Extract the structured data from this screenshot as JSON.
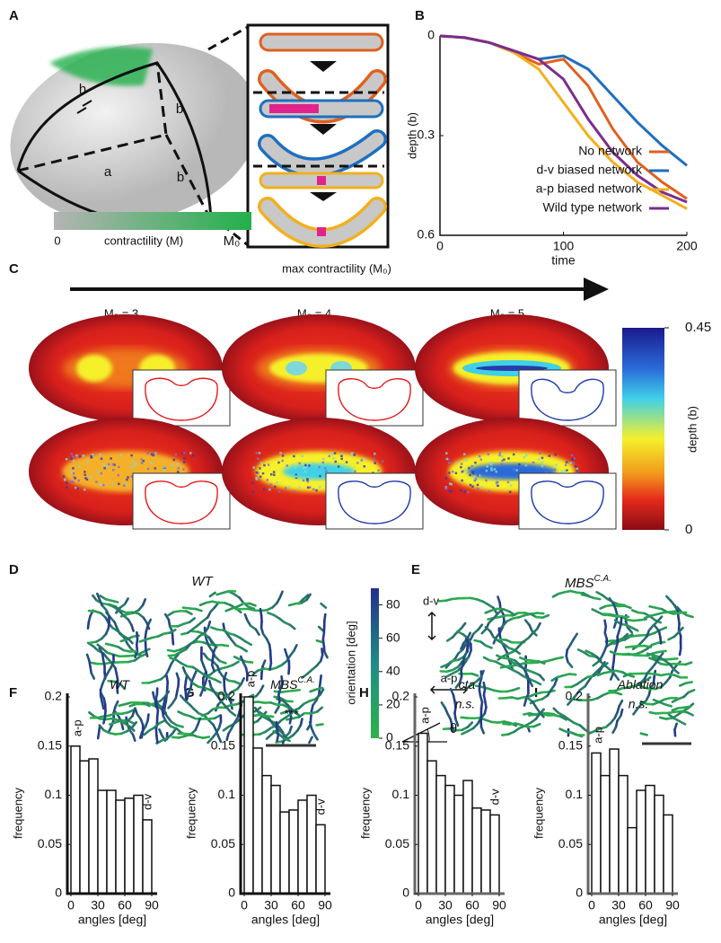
{
  "figure": {
    "panel_labels": [
      "A",
      "B",
      "C",
      "D",
      "E",
      "F",
      "G",
      "H",
      "I"
    ],
    "panel_a": {
      "dims": [
        "h",
        "a",
        "b",
        "b"
      ],
      "colorbar_min": "0",
      "colorbar_label": "contractility (M)",
      "colorbar_max": "M₀"
    },
    "panel_c": {
      "arrow_label": "max contractility (M₀)",
      "columns": [
        "M₀ = 3",
        "M₀ = 4",
        "M₀ = 5"
      ],
      "colorbar": {
        "label": "depth (b)",
        "lim": [
          0,
          0.45
        ],
        "ticks": [
          0,
          0.45
        ]
      }
    },
    "panel_d": {
      "title": "WT",
      "colorbar": {
        "label": "orientation [deg]",
        "lim": [
          0,
          90
        ],
        "ticks": [
          0,
          20,
          40,
          60,
          80
        ]
      }
    },
    "panel_e": {
      "title": "MBS",
      "title_sup": "C.A.",
      "ap": "a-p",
      "dv": "d-v",
      "theta": "θ"
    }
  },
  "chart_data": [
    {
      "type": "line",
      "xlabel": "time",
      "ylabel": "depth (b)",
      "x": [
        0,
        20,
        40,
        60,
        80,
        100,
        120,
        140,
        160,
        180,
        200
      ],
      "xlim": [
        0,
        200
      ],
      "xticks": [
        0,
        100,
        200
      ],
      "ylim": [
        0,
        0.6
      ],
      "yticks": [
        0,
        0.3,
        0.6
      ],
      "y_reversed": true,
      "legend": "lower right",
      "series": [
        {
          "name": "No network",
          "color": "#e0601f",
          "values": [
            0,
            0.005,
            0.02,
            0.05,
            0.085,
            0.07,
            0.15,
            0.28,
            0.38,
            0.44,
            0.49
          ]
        },
        {
          "name": "d-v biased network",
          "color": "#1f6fbf",
          "values": [
            0,
            0.005,
            0.02,
            0.045,
            0.07,
            0.06,
            0.1,
            0.18,
            0.26,
            0.33,
            0.39
          ]
        },
        {
          "name": "a-p biased network",
          "color": "#f2b01e",
          "values": [
            0,
            0.005,
            0.02,
            0.05,
            0.1,
            0.2,
            0.3,
            0.38,
            0.44,
            0.48,
            0.52
          ]
        },
        {
          "name": "Wild type network",
          "color": "#7b2d8e",
          "values": [
            0,
            0.005,
            0.02,
            0.045,
            0.07,
            0.13,
            0.25,
            0.35,
            0.42,
            0.47,
            0.5
          ]
        }
      ]
    },
    {
      "type": "histogram",
      "title": "WT",
      "start_label": "a-p",
      "end_label": "d-v",
      "xlabel": "angles [deg]",
      "ylabel": "frequency",
      "bins": [
        0,
        10,
        20,
        30,
        40,
        50,
        60,
        70,
        80,
        90
      ],
      "values": [
        0.15,
        0.135,
        0.137,
        0.105,
        0.105,
        0.095,
        0.097,
        0.1,
        0.075
      ],
      "xlim": [
        -4,
        96
      ],
      "xticks": [
        0,
        30,
        60,
        90
      ],
      "ylim": [
        0,
        0.2
      ],
      "yticks": [
        0,
        0.05,
        0.1,
        0.15,
        0.2
      ],
      "color": "#ffffff"
    },
    {
      "type": "histogram",
      "title": "MBS",
      "title_sup": "C.A.",
      "note": "***",
      "start_label": "a-p",
      "end_label": "d-v",
      "xlabel": "angles [deg]",
      "ylabel": "frequency",
      "bins": [
        0,
        10,
        20,
        30,
        40,
        50,
        60,
        70,
        80,
        90
      ],
      "values": [
        0.2,
        0.148,
        0.12,
        0.11,
        0.083,
        0.085,
        0.095,
        0.1,
        0.07
      ],
      "xlim": [
        -4,
        96
      ],
      "xticks": [
        0,
        30,
        60,
        90
      ],
      "ylim": [
        0,
        0.2
      ],
      "yticks": [
        0,
        0.05,
        0.1,
        0.15,
        0.2
      ],
      "color": "#ffffff"
    },
    {
      "type": "histogram",
      "title": "cta",
      "note": "n.s.",
      "start_label": "a-p",
      "end_label": "d-v",
      "xlabel": "angles [deg]",
      "ylabel": "frequency",
      "bins": [
        0,
        10,
        20,
        30,
        40,
        50,
        60,
        70,
        80,
        90
      ],
      "values": [
        0.163,
        0.135,
        0.12,
        0.11,
        0.1,
        0.115,
        0.087,
        0.085,
        0.08
      ],
      "xlim": [
        -4,
        96
      ],
      "xticks": [
        0,
        30,
        60,
        90
      ],
      "ylim": [
        0,
        0.2
      ],
      "yticks": [
        0,
        0.05,
        0.1,
        0.15,
        0.2
      ],
      "color": "#ffffff"
    },
    {
      "type": "histogram",
      "title": "Ablation",
      "note": "n.s.",
      "start_label": "a-p",
      "xlabel": "angles [deg]",
      "ylabel": "frequency",
      "bins": [
        0,
        10,
        20,
        30,
        40,
        50,
        60,
        70,
        80,
        90
      ],
      "values": [
        0.143,
        0.12,
        0.147,
        0.12,
        0.067,
        0.105,
        0.11,
        0.1,
        0.08
      ],
      "xlim": [
        -4,
        96
      ],
      "xticks": [
        0,
        30,
        60,
        90
      ],
      "ylim": [
        0,
        0.2
      ],
      "yticks": [
        0,
        0.05,
        0.1,
        0.15,
        0.2
      ],
      "color": "#ffffff"
    }
  ]
}
